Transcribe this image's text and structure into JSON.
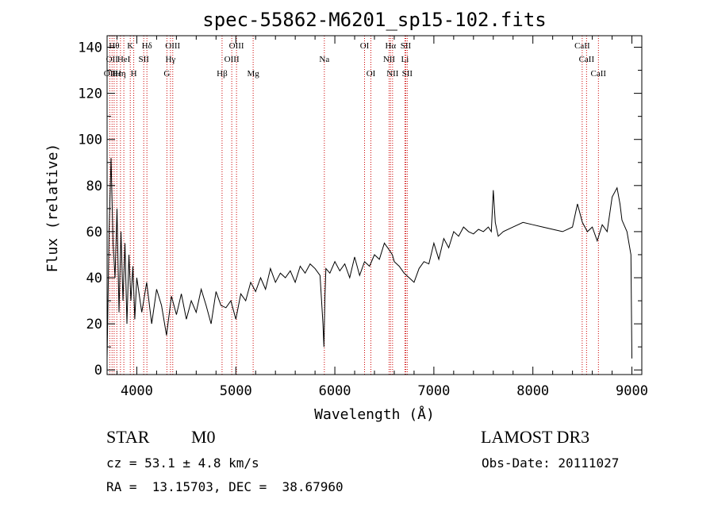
{
  "chart_data": {
    "type": "line",
    "title": "spec-55862-M6201_sp15-102.fits",
    "xlabel": "Wavelength (Å)",
    "ylabel": "Flux (relative)",
    "xlim": [
      3700,
      9100
    ],
    "ylim": [
      -2,
      145
    ],
    "x_ticks": [
      4000,
      5000,
      6000,
      7000,
      8000,
      9000
    ],
    "y_ticks": [
      0,
      20,
      40,
      60,
      80,
      100,
      120,
      140
    ],
    "line_color": "#000000",
    "line_marker_color": "#cc0000",
    "spectrum": {
      "name": "flux",
      "x": [
        3700,
        3720,
        3740,
        3760,
        3780,
        3800,
        3820,
        3840,
        3860,
        3880,
        3900,
        3920,
        3940,
        3960,
        3980,
        4000,
        4050,
        4100,
        4150,
        4200,
        4250,
        4300,
        4350,
        4400,
        4450,
        4500,
        4550,
        4600,
        4650,
        4700,
        4750,
        4800,
        4850,
        4900,
        4950,
        5000,
        5050,
        5100,
        5150,
        5200,
        5250,
        5300,
        5350,
        5400,
        5450,
        5500,
        5550,
        5600,
        5650,
        5700,
        5750,
        5800,
        5850,
        5880,
        5890,
        5900,
        5910,
        5950,
        6000,
        6050,
        6100,
        6150,
        6200,
        6250,
        6300,
        6350,
        6400,
        6450,
        6500,
        6550,
        6580,
        6600,
        6650,
        6700,
        6750,
        6800,
        6850,
        6900,
        6950,
        7000,
        7050,
        7100,
        7150,
        7200,
        7250,
        7300,
        7350,
        7400,
        7450,
        7500,
        7550,
        7580,
        7600,
        7620,
        7650,
        7700,
        7800,
        7900,
        8000,
        8100,
        8200,
        8300,
        8400,
        8450,
        8500,
        8550,
        8600,
        8650,
        8700,
        8750,
        8800,
        8850,
        8880,
        8900,
        8950,
        8990,
        9000
      ],
      "y": [
        5,
        60,
        92,
        55,
        40,
        70,
        25,
        60,
        30,
        55,
        20,
        50,
        30,
        45,
        22,
        40,
        25,
        38,
        20,
        35,
        28,
        15,
        32,
        24,
        33,
        22,
        30,
        25,
        35,
        28,
        20,
        34,
        28,
        27,
        30,
        22,
        33,
        30,
        38,
        34,
        40,
        35,
        44,
        38,
        42,
        40,
        43,
        38,
        45,
        42,
        46,
        44,
        41,
        20,
        10,
        32,
        44,
        42,
        47,
        43,
        46,
        40,
        49,
        41,
        47,
        45,
        50,
        48,
        55,
        52,
        50,
        47,
        45,
        42,
        40,
        38,
        44,
        47,
        46,
        55,
        48,
        57,
        53,
        60,
        58,
        62,
        60,
        59,
        61,
        60,
        62,
        60,
        78,
        64,
        58,
        60,
        62,
        64,
        63,
        62,
        61,
        60,
        62,
        72,
        64,
        60,
        62,
        56,
        63,
        60,
        75,
        79,
        72,
        65,
        60,
        50,
        5
      ]
    },
    "line_markers": [
      {
        "x": 3727,
        "label": "OII",
        "row": 2
      },
      {
        "x": 3750,
        "label": "OII",
        "row": 1
      },
      {
        "x": 3771,
        "label": "Hθ",
        "row": 0
      },
      {
        "x": 3798,
        "label": "Hε",
        "row": 2
      },
      {
        "x": 3835,
        "label": "Hη",
        "row": 2
      },
      {
        "x": 3869,
        "label": "HeI",
        "row": 1
      },
      {
        "x": 3934,
        "label": "K",
        "row": 0
      },
      {
        "x": 3969,
        "label": "H",
        "row": 2
      },
      {
        "x": 4070,
        "label": "SII",
        "row": 1
      },
      {
        "x": 4102,
        "label": "Hδ",
        "row": 0
      },
      {
        "x": 4304,
        "label": "G",
        "row": 2
      },
      {
        "x": 4340,
        "label": "Hγ",
        "row": 1
      },
      {
        "x": 4363,
        "label": "OIII",
        "row": 0
      },
      {
        "x": 4861,
        "label": "Hβ",
        "row": 2
      },
      {
        "x": 4959,
        "label": "OIII",
        "row": 1
      },
      {
        "x": 5007,
        "label": "OIII",
        "row": 0
      },
      {
        "x": 5175,
        "label": "Mg",
        "row": 2
      },
      {
        "x": 5894,
        "label": "Na",
        "row": 1
      },
      {
        "x": 6300,
        "label": "OI",
        "row": 0
      },
      {
        "x": 6364,
        "label": "OI",
        "row": 2
      },
      {
        "x": 6548,
        "label": "NII",
        "row": 1
      },
      {
        "x": 6563,
        "label": "Hα",
        "row": 0
      },
      {
        "x": 6583,
        "label": "NII",
        "row": 2
      },
      {
        "x": 6708,
        "label": "Li",
        "row": 1
      },
      {
        "x": 6716,
        "label": "SII",
        "row": 0
      },
      {
        "x": 6731,
        "label": "SII",
        "row": 2
      },
      {
        "x": 8498,
        "label": "CaII",
        "row": 0
      },
      {
        "x": 8542,
        "label": "CaII",
        "row": 1
      },
      {
        "x": 8662,
        "label": "CaII",
        "row": 2
      }
    ]
  },
  "info": {
    "class_label": "STAR",
    "subclass": "M0",
    "survey": "LAMOST DR3",
    "redshift": "cz = 53.1 ± 4.8 km/s",
    "obs_date": "Obs-Date: 20111027",
    "coords": "RA =  13.15703, DEC =  38.67960"
  }
}
